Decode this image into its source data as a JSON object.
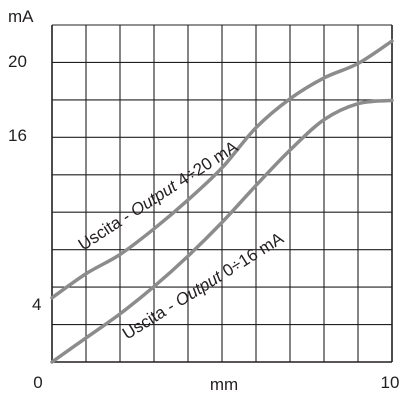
{
  "chart_data": {
    "type": "line",
    "title": "",
    "xlabel": "mm",
    "ylabel": "mA",
    "xlim": [
      0,
      10
    ],
    "ylim": [
      0,
      21
    ],
    "grid": true,
    "xticks": [
      {
        "label": "0",
        "value": 0
      },
      {
        "label": "10",
        "value": 10
      }
    ],
    "yticks": [
      {
        "label": "4",
        "value": 4
      },
      {
        "label": "16",
        "value": 16
      },
      {
        "label": "20",
        "value": 20
      }
    ],
    "series": [
      {
        "name": "Uscita - Output 4÷20 mA",
        "name_parts": [
          "Uscita - ",
          "Output",
          " 4÷20 mA"
        ],
        "x": [
          0,
          1,
          2,
          3,
          4,
          5,
          6,
          7,
          8,
          9,
          10
        ],
        "y": [
          4.0,
          5.5,
          6.7,
          8.3,
          10.1,
          12.1,
          14.6,
          16.4,
          17.7,
          18.6,
          20.0
        ]
      },
      {
        "name": "Uscita - Output 0÷16 mA",
        "name_parts": [
          "Uscita - ",
          "Output",
          " 0÷16 mA"
        ],
        "x": [
          0,
          1,
          2,
          3,
          4,
          5,
          6,
          7,
          8,
          9,
          10
        ],
        "y": [
          0.0,
          1.5,
          3.0,
          4.7,
          6.6,
          8.7,
          11.0,
          13.2,
          15.1,
          16.1,
          16.3
        ]
      }
    ]
  }
}
